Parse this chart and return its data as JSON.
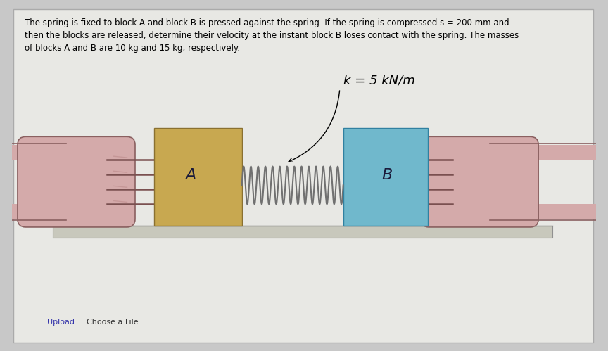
{
  "bg_color": "#c8c8c8",
  "panel_color": "#e0e0dc",
  "panel_inner_color": "#e8e8e4",
  "text_problem": "The spring is fixed to block A and block B is pressed against the spring. If the spring is compressed s = 200 mm and\nthen the blocks are released, determine their velocity at the instant block B loses contact with the spring. The masses\nof blocks A and B are 10 kg and 15 kg, respectively.",
  "spring_label": "k = 5 kN/m",
  "label_A": "A",
  "label_B": "B",
  "block_A_color": "#c8a850",
  "block_A_edge": "#8a7030",
  "block_B_color": "#70b8cc",
  "block_B_edge": "#3080a0",
  "hand_color": "#d4aaaa",
  "hand_edge": "#8a6060",
  "floor_color": "#c8c8bc",
  "floor_edge": "#909090",
  "spring_color": "#707070",
  "upload_text": "Upload",
  "choose_text": "Choose a File",
  "text_fontsize": 8.5,
  "spring_label_fontsize": 13,
  "label_fontsize": 16
}
